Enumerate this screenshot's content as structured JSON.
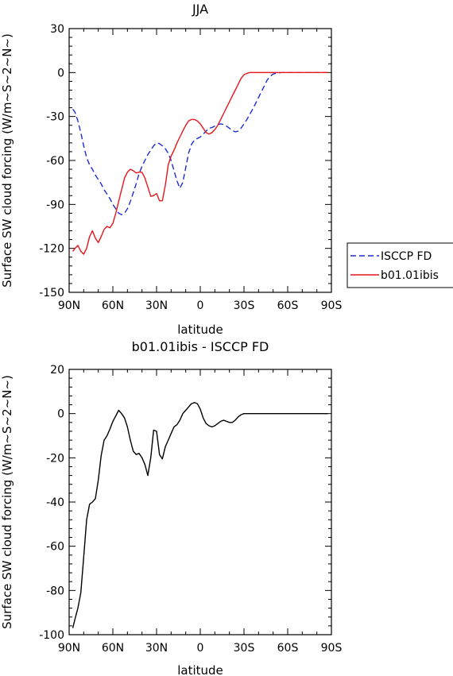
{
  "chart_data": [
    {
      "type": "line",
      "title": "JJA",
      "xlabel": "latitude",
      "ylabel": "Surface SW cloud forcing (W/m~S~2~N~)",
      "x_tick_labels": [
        "90N",
        "60N",
        "30N",
        "0",
        "30S",
        "60S",
        "90S"
      ],
      "x_ticks": [
        90,
        60,
        30,
        0,
        -30,
        -60,
        -90
      ],
      "y_tick_labels": [
        "30",
        "0",
        "-30",
        "-60",
        "-90",
        "-120",
        "-150"
      ],
      "y_ticks": [
        30,
        0,
        -30,
        -60,
        -90,
        -120,
        -150
      ],
      "xlim": [
        90,
        -90
      ],
      "ylim": [
        -150,
        30
      ],
      "grid": false,
      "legend_position": "right",
      "series": [
        {
          "name": "ISCCP FD",
          "color": "#1f2bd6",
          "dash": "dashed",
          "x": [
            87.5,
            86,
            84,
            82,
            80,
            78,
            76,
            74,
            72,
            70,
            68,
            66,
            64,
            62,
            60,
            58,
            56,
            54,
            52,
            50,
            48,
            46,
            44,
            42,
            40,
            38,
            36,
            34,
            32,
            30,
            28,
            26,
            24,
            22,
            20,
            18,
            16,
            14,
            12,
            10,
            8,
            6,
            4,
            2,
            0,
            -2,
            -4,
            -6,
            -8,
            -10,
            -12,
            -14,
            -16,
            -18,
            -20,
            -22,
            -24,
            -26,
            -28,
            -30,
            -32,
            -34,
            -36,
            -38,
            -40,
            -42,
            -44,
            -46,
            -48,
            -50,
            -52,
            -54,
            -56,
            -58,
            -60,
            -62,
            -64,
            -66,
            -68,
            -70,
            -72,
            -75,
            -80,
            -85,
            -87.5
          ],
          "y": [
            -25,
            -27,
            -33,
            -41,
            -50,
            -58,
            -63,
            -66,
            -70,
            -73,
            -76,
            -80,
            -83,
            -86,
            -90,
            -93,
            -96,
            -97,
            -96,
            -93,
            -88,
            -82,
            -76,
            -69,
            -64,
            -60,
            -56,
            -53,
            -50,
            -48,
            -48.5,
            -50,
            -52,
            -55,
            -60,
            -67,
            -74,
            -79,
            -75,
            -65,
            -55,
            -49,
            -46,
            -45,
            -44,
            -42,
            -40,
            -38,
            -37.5,
            -36.5,
            -35.5,
            -35,
            -35.5,
            -36.5,
            -38,
            -39.5,
            -40.5,
            -40,
            -38,
            -35,
            -32,
            -28.5,
            -25,
            -21,
            -17,
            -13,
            -9,
            -5,
            -2.5,
            -1,
            -0.5,
            -0.2,
            0,
            0,
            0,
            0,
            0,
            0,
            0,
            0,
            0,
            0,
            0,
            0,
            0
          ]
        },
        {
          "name": "b01.01ibis",
          "color": "#e8161b",
          "dash": "solid",
          "x": [
            87.5,
            86,
            84,
            82,
            80,
            78,
            76,
            74,
            72,
            70,
            68,
            66,
            64,
            62,
            60,
            58,
            56,
            54,
            52,
            50,
            48,
            46,
            44,
            42,
            40,
            38,
            36,
            34,
            32,
            30,
            28,
            26,
            24,
            22,
            20,
            18,
            16,
            14,
            12,
            10,
            8,
            6,
            4,
            2,
            0,
            -2,
            -4,
            -6,
            -8,
            -10,
            -12,
            -14,
            -16,
            -18,
            -20,
            -22,
            -24,
            -26,
            -28,
            -30,
            -32,
            -34,
            -36,
            -38,
            -40,
            -42,
            -44,
            -46,
            -48,
            -50,
            -52,
            -54,
            -56,
            -58,
            -60,
            -62,
            -64,
            -66,
            -68,
            -70,
            -72,
            -75,
            -80,
            -85,
            -87.5
          ],
          "y": [
            -122,
            -120,
            -118,
            -122,
            -124,
            -120,
            -112,
            -108,
            -113,
            -116,
            -112,
            -107,
            -105,
            -106,
            -103,
            -96,
            -88,
            -80,
            -72,
            -68,
            -66,
            -67,
            -68.5,
            -68,
            -68,
            -72,
            -78,
            -84.5,
            -84,
            -82.5,
            -87.5,
            -87.5,
            -77,
            -63,
            -57,
            -53,
            -48,
            -44,
            -40,
            -36,
            -33,
            -32,
            -32,
            -33,
            -35,
            -38,
            -41,
            -42,
            -41,
            -39,
            -36,
            -32,
            -28,
            -24,
            -20,
            -16,
            -12,
            -8,
            -4,
            -1.5,
            -0.5,
            0,
            0,
            0,
            0,
            0,
            0,
            0,
            0,
            0,
            0,
            0,
            0,
            0,
            0,
            0,
            0,
            0,
            0,
            0,
            0,
            0,
            0,
            0,
            0
          ]
        }
      ]
    },
    {
      "type": "line",
      "title": "b01.01ibis - ISCCP FD",
      "xlabel": "latitude",
      "ylabel": "Surface SW cloud forcing (W/m~S~2~N~)",
      "x_tick_labels": [
        "90N",
        "60N",
        "30N",
        "0",
        "30S",
        "60S",
        "90S"
      ],
      "x_ticks": [
        90,
        60,
        30,
        0,
        -30,
        -60,
        -90
      ],
      "y_tick_labels": [
        "20",
        "0",
        "-20",
        "-40",
        "-60",
        "-80",
        "-100"
      ],
      "y_ticks": [
        20,
        0,
        -20,
        -40,
        -60,
        -80,
        -100
      ],
      "xlim": [
        90,
        -90
      ],
      "ylim": [
        -100,
        20
      ],
      "grid": false,
      "series": [
        {
          "color": "#000000",
          "dash": "solid",
          "x": [
            87.5,
            86,
            84,
            82,
            80,
            78,
            76,
            74,
            72,
            70,
            68,
            66,
            64,
            62,
            60,
            58,
            56,
            54,
            52,
            50,
            48,
            46,
            44,
            42,
            40,
            38,
            36,
            34,
            32,
            30,
            28,
            26,
            24,
            22,
            20,
            18,
            16,
            14,
            12,
            10,
            8,
            6,
            4,
            2,
            0,
            -2,
            -4,
            -6,
            -8,
            -10,
            -12,
            -14,
            -16,
            -18,
            -20,
            -22,
            -24,
            -26,
            -28,
            -30,
            -32,
            -34,
            -36,
            -38,
            -40,
            -42,
            -44,
            -46,
            -48,
            -50,
            -52,
            -54,
            -56,
            -58,
            -60,
            -62,
            -64,
            -66,
            -68,
            -70,
            -72,
            -75,
            -80,
            -85,
            -87.5
          ],
          "y": [
            -97,
            -93,
            -88,
            -81,
            -65,
            -48,
            -41,
            -40,
            -38.5,
            -30,
            -19,
            -12,
            -10,
            -7,
            -3.5,
            -1,
            1.5,
            0,
            -2,
            -6,
            -12,
            -17,
            -18.5,
            -18,
            -20,
            -23,
            -28,
            -20,
            -7.5,
            -8,
            -18.5,
            -20.5,
            -15,
            -12,
            -9,
            -6,
            -5,
            -3,
            0,
            1.5,
            3,
            4.5,
            5,
            4.5,
            2,
            -2,
            -4.5,
            -5.5,
            -6,
            -5.5,
            -4.5,
            -3.5,
            -3,
            -3.5,
            -4,
            -4,
            -3,
            -1.5,
            -0.5,
            0,
            0,
            0,
            0,
            0,
            0,
            0,
            0,
            0,
            0,
            0,
            0,
            0,
            0,
            0,
            0,
            0,
            0,
            0,
            0,
            0,
            0,
            0,
            0,
            0,
            0
          ]
        }
      ]
    }
  ]
}
